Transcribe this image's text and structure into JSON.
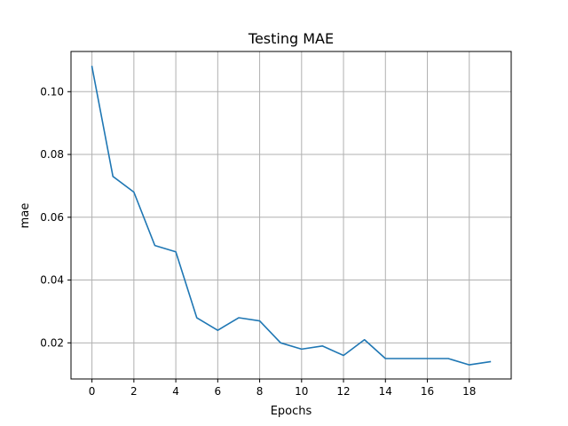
{
  "chart_data": {
    "type": "line",
    "title": "Testing MAE",
    "xlabel": "Epochs",
    "ylabel": "mae",
    "xlim": [
      -1.0,
      20.0
    ],
    "ylim": [
      0.0085,
      0.1128
    ],
    "xticks": [
      0,
      2,
      4,
      6,
      8,
      10,
      12,
      14,
      16,
      18
    ],
    "yticks": [
      0.02,
      0.04,
      0.06,
      0.08,
      0.1
    ],
    "ytick_labels": [
      "0.02",
      "0.04",
      "0.06",
      "0.08",
      "0.10"
    ],
    "grid": true,
    "x": [
      0,
      1,
      2,
      3,
      4,
      5,
      6,
      7,
      8,
      9,
      10,
      11,
      12,
      13,
      14,
      15,
      16,
      17,
      18,
      19
    ],
    "series": [
      {
        "color": "#1f77b4",
        "values": [
          0.108,
          0.073,
          0.068,
          0.051,
          0.049,
          0.028,
          0.024,
          0.028,
          0.027,
          0.02,
          0.018,
          0.019,
          0.016,
          0.021,
          0.015,
          0.015,
          0.015,
          0.015,
          0.013,
          0.014
        ]
      }
    ]
  }
}
